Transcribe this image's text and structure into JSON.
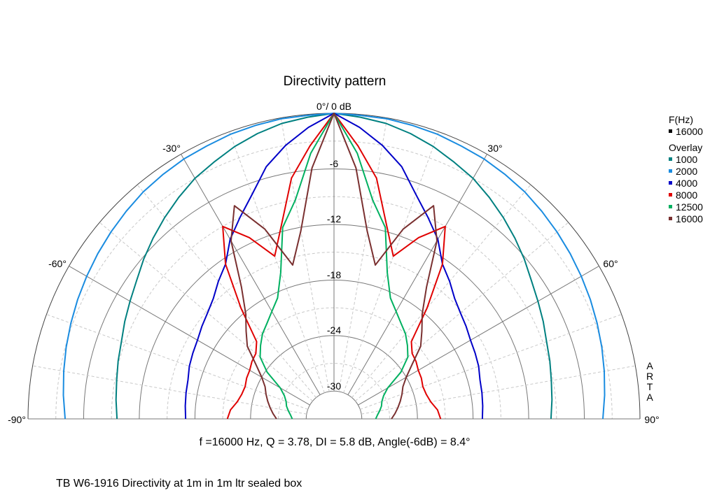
{
  "chart_data": {
    "type": "polar",
    "title": "Directivity pattern",
    "top_label": "0°/ 0 dB",
    "angle_labels": [
      "-90°",
      "-60°",
      "-30°",
      "30°",
      "60°",
      "90°"
    ],
    "radial_ticks": [
      "-6",
      "-12",
      "-18",
      "-24",
      "-30"
    ],
    "radial_range_db": [
      -33,
      0
    ],
    "angle_range_deg": [
      -90,
      90
    ],
    "grid": true,
    "watermark": [
      "A",
      "R",
      "T",
      "A"
    ],
    "legend": {
      "header": "F(Hz)",
      "current": "16000",
      "overlay_title": "Overlay",
      "position": "right",
      "items": [
        "1000",
        "2000",
        "4000",
        "8000",
        "12500",
        "16000"
      ]
    },
    "info": "f =16000 Hz,  Q =  3.78,  DI =   5.8 dB,  Angle(-6dB) =   8.4°",
    "footnote": "TB W6-1916 Directivity at 1m in 1m ltr sealed box",
    "angles": [
      0,
      5,
      10,
      15,
      20,
      25,
      30,
      35,
      40,
      45,
      50,
      55,
      60,
      65,
      70,
      75,
      80,
      85,
      90
    ],
    "series": [
      {
        "name": "1000",
        "color": "#008080",
        "values": [
          0,
          -0.3,
          -0.6,
          -1.1,
          -1.7,
          -2.4,
          -3.0,
          -3.8,
          -4.6,
          -5.4,
          -6.2,
          -7.0,
          -7.6,
          -8.1,
          -8.6,
          -8.9,
          -9.2,
          -9.4,
          -9.6
        ]
      },
      {
        "name": "2000",
        "color": "#1a8ce0",
        "values": [
          0,
          -0.1,
          -0.1,
          -0.2,
          -0.3,
          -0.5,
          -0.6,
          -0.8,
          -1.0,
          -1.3,
          -1.6,
          -1.9,
          -2.2,
          -2.5,
          -2.8,
          -3.1,
          -3.4,
          -3.7,
          -4.0
        ]
      },
      {
        "name": "4000",
        "color": "#0000c8",
        "values": [
          0,
          -1.4,
          -3.0,
          -4.8,
          -7.2,
          -9.0,
          -10.6,
          -12.6,
          -13.6,
          -14.6,
          -15.2,
          -15.6,
          -16.0,
          -16.2,
          -16.4,
          -16.7,
          -16.8,
          -16.9,
          -17.0
        ]
      },
      {
        "name": "8000",
        "color": "#e00000",
        "values": [
          0,
          -3.4,
          -6.6,
          -11.2,
          -14.3,
          -11.4,
          -9.0,
          -12.6,
          -17.4,
          -21.2,
          -22.0,
          -22.2,
          -22.5,
          -22.6,
          -22.8,
          -22.7,
          -22.4,
          -21.8,
          -21.5
        ]
      },
      {
        "name": "12500",
        "color": "#00b060",
        "values": [
          0,
          -4.2,
          -9.0,
          -11.6,
          -16.2,
          -18.6,
          -19.6,
          -20.4,
          -21.0,
          -21.8,
          -22.6,
          -24.2,
          -26.3,
          -27.1,
          -27.5,
          -27.7,
          -28.0,
          -28.3,
          -28.5
        ]
      },
      {
        "name": "16000",
        "color": "#7a3030",
        "values": [
          0,
          -5.8,
          -12.4,
          -15.8,
          -11.2,
          -7.6,
          -10.8,
          -15.6,
          -18.2,
          -19.6,
          -20.8,
          -22.7,
          -24.0,
          -24.8,
          -25.2,
          -25.6,
          -26.0,
          -26.4,
          -26.8
        ]
      }
    ]
  }
}
